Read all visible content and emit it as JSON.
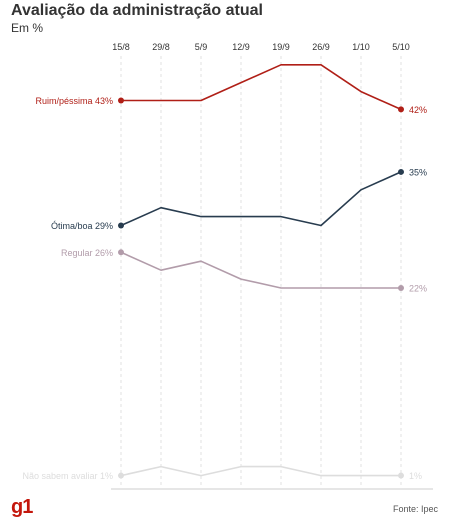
{
  "header": {
    "title": "Avaliação da administração atual",
    "subtitle": "Em %"
  },
  "footer": {
    "logo": "g1",
    "source": "Fonte: Ipec"
  },
  "chart_data": {
    "type": "line",
    "title": "Avaliação da administração atual",
    "subtitle": "Em %",
    "categories": [
      "15/8",
      "29/8",
      "5/9",
      "12/9",
      "19/9",
      "26/9",
      "1/10",
      "5/10"
    ],
    "series": [
      {
        "name": "Ruim/péssima",
        "color": "#b01f17",
        "values": [
          43,
          43,
          43,
          45,
          47,
          47,
          44,
          42
        ],
        "start_label": "Ruim/péssima 43%",
        "end_label": "42%"
      },
      {
        "name": "Ótima/boa",
        "color": "#283c4f",
        "values": [
          29,
          31,
          30,
          30,
          30,
          29,
          33,
          35
        ],
        "start_label": "Ótima/boa 29%",
        "end_label": "35%"
      },
      {
        "name": "Regular",
        "color": "#b29caa",
        "values": [
          26,
          24,
          25,
          23,
          22,
          22,
          22,
          22
        ],
        "start_label": "Regular 26%",
        "end_label": "22%"
      },
      {
        "name": "Não sabem avaliar",
        "color": "#dddddd",
        "values": [
          1,
          2,
          1,
          2,
          2,
          1,
          1,
          1
        ],
        "start_label": "Não sabem avaliar 1%",
        "end_label": "1%"
      }
    ],
    "grid": "vertical dashed",
    "legend": "inline labels at line ends"
  }
}
